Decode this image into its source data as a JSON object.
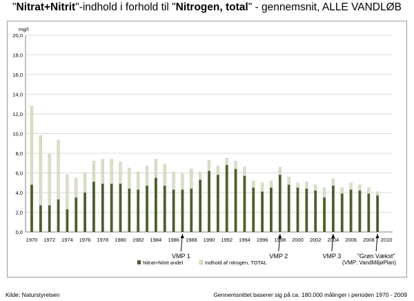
{
  "title": {
    "q1": "\"",
    "bold1": "Nitrat+Nitrit",
    "mid": "\"-indhold i forhold til \"",
    "bold2": "Nitrogen, total",
    "tail": "\" - gennemsnit, ALLE VANDLØB"
  },
  "footer": {
    "source": "Kilde: Naturstyrelsen",
    "note": "Gennemsnittet baserer sig på ca. 180.000 målinger i perioden 1970 - 2009"
  },
  "chart_data": {
    "type": "bar",
    "stacked": true,
    "ylabel": "mg/l",
    "ylim": [
      0,
      20
    ],
    "yticks": [
      "0,0",
      "2,0",
      "4,0",
      "6,0",
      "8,0",
      "10,0",
      "12,0",
      "14,0",
      "16,0",
      "18,0",
      "20,0"
    ],
    "xlim": [
      1970,
      2010
    ],
    "xticks": [
      "1970",
      "1972",
      "1974",
      "1976",
      "1978",
      "1980",
      "1982",
      "1984",
      "1986",
      "1988",
      "1990",
      "1992",
      "1994",
      "1996",
      "1998",
      "2000",
      "2002",
      "2004",
      "2006",
      "2008",
      "2010"
    ],
    "grid": true,
    "legend_position": "bottom",
    "years": [
      1970,
      1971,
      1972,
      1973,
      1974,
      1975,
      1976,
      1977,
      1978,
      1979,
      1980,
      1981,
      1982,
      1983,
      1984,
      1985,
      1986,
      1987,
      1988,
      1989,
      1990,
      1991,
      1992,
      1993,
      1994,
      1995,
      1996,
      1997,
      1998,
      1999,
      2000,
      2001,
      2002,
      2003,
      2004,
      2005,
      2006,
      2007,
      2008,
      2009
    ],
    "series": [
      {
        "name": "Nitrat+Nitrit andel",
        "color": "#4a5f2a",
        "values": [
          4.8,
          2.7,
          2.7,
          3.3,
          2.3,
          3.5,
          4.0,
          5.1,
          4.9,
          4.9,
          4.9,
          4.4,
          4.3,
          4.7,
          5.5,
          4.7,
          4.3,
          4.3,
          4.4,
          5.3,
          6.2,
          5.8,
          6.8,
          6.4,
          5.7,
          4.5,
          4.1,
          4.5,
          5.8,
          4.8,
          4.5,
          4.4,
          4.2,
          3.5,
          4.7,
          3.9,
          4.3,
          4.2,
          3.9,
          3.7
        ]
      },
      {
        "name": "Indhold af nitrogen, TOTAL",
        "color": "#d8e0c6",
        "values": [
          12.8,
          9.8,
          7.9,
          9.3,
          5.8,
          5.5,
          6.0,
          7.2,
          7.4,
          7.4,
          7.1,
          6.5,
          6.1,
          6.7,
          7.4,
          6.9,
          6.1,
          5.9,
          6.4,
          6.1,
          7.3,
          6.7,
          7.5,
          7.2,
          6.6,
          5.2,
          5.0,
          5.2,
          6.6,
          5.6,
          5.0,
          5.1,
          4.8,
          4.5,
          5.4,
          4.5,
          5.0,
          4.8,
          4.5,
          4.1
        ]
      }
    ],
    "annotations": [
      {
        "label": "VMP 1",
        "year": 1987
      },
      {
        "label": "VMP 2",
        "year": 1998
      },
      {
        "label": "VMP 3",
        "year": 2004
      },
      {
        "label": "\"Grøn Vækst\"",
        "year": 2009
      }
    ],
    "legend_note": "(VMP: VandMiljøPlan)"
  }
}
